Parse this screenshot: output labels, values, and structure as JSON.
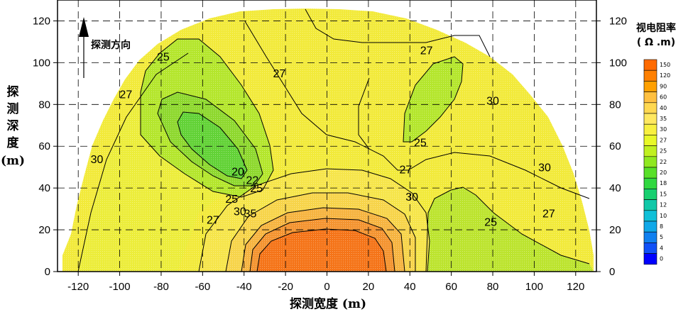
{
  "chart_data": {
    "type": "heatmap",
    "title": "",
    "xlabel": "探测宽度 (m)",
    "ylabel_chars": [
      "探",
      "测",
      "深",
      "度",
      "(m)"
    ],
    "annotation_direction": "探测方向",
    "xlim": [
      -130,
      130
    ],
    "ylim": [
      0,
      130
    ],
    "x_ticks": [
      "-120",
      "-100",
      "-80",
      "-60",
      "-40",
      "-20",
      "0",
      "20",
      "40",
      "60",
      "80",
      "100",
      "120"
    ],
    "y_ticks_left": [
      "0",
      "20",
      "40",
      "60",
      "80",
      "100",
      "120"
    ],
    "y_ticks_right": [
      "0",
      "20",
      "40",
      "60",
      "80",
      "100",
      "120"
    ],
    "grid": true,
    "legend_title_lines": [
      "视电阻率",
      "( Ω .m)"
    ],
    "legend_position": "right",
    "legend": [
      {
        "label": "150",
        "color": "#ff6a00"
      },
      {
        "label": "120",
        "color": "#ff8000"
      },
      {
        "label": "90",
        "color": "#ffa000"
      },
      {
        "label": "60",
        "color": "#ffc040"
      },
      {
        "label": "40",
        "color": "#ffd850"
      },
      {
        "label": "35",
        "color": "#ffe860"
      },
      {
        "label": "30",
        "color": "#f8f040"
      },
      {
        "label": "27",
        "color": "#e8f828"
      },
      {
        "label": "25",
        "color": "#c0f020"
      },
      {
        "label": "22",
        "color": "#90e820"
      },
      {
        "label": "20",
        "color": "#58e028"
      },
      {
        "label": "18",
        "color": "#30d840"
      },
      {
        "label": "15",
        "color": "#18d070"
      },
      {
        "label": "12",
        "color": "#10c8a8"
      },
      {
        "label": "10",
        "color": "#10c0d8"
      },
      {
        "label": "8",
        "color": "#10a8e8"
      },
      {
        "label": "5",
        "color": "#1080f0"
      },
      {
        "label": "4",
        "color": "#1050f8"
      },
      {
        "label": "0",
        "color": "#0000ff"
      }
    ],
    "contour_labels": [
      {
        "text": "25",
        "x": -79,
        "y": 103
      },
      {
        "text": "27",
        "x": -97,
        "y": 85
      },
      {
        "text": "27",
        "x": -23,
        "y": 95
      },
      {
        "text": "27",
        "x": 48,
        "y": 106
      },
      {
        "text": "30",
        "x": -111,
        "y": 54
      },
      {
        "text": "20",
        "x": -43,
        "y": 48
      },
      {
        "text": "22",
        "x": -36,
        "y": 44
      },
      {
        "text": "25",
        "x": -34,
        "y": 40
      },
      {
        "text": "25",
        "x": -46,
        "y": 35
      },
      {
        "text": "27",
        "x": -55,
        "y": 25
      },
      {
        "text": "30",
        "x": -42,
        "y": 29
      },
      {
        "text": "35",
        "x": -37,
        "y": 28
      },
      {
        "text": "25",
        "x": 45,
        "y": 62
      },
      {
        "text": "27",
        "x": 38,
        "y": 49
      },
      {
        "text": "30",
        "x": 80,
        "y": 82
      },
      {
        "text": "30",
        "x": 41,
        "y": 36
      },
      {
        "text": "30",
        "x": 105,
        "y": 50
      },
      {
        "text": "27",
        "x": 107,
        "y": 28
      },
      {
        "text": "25",
        "x": 79,
        "y": 24
      }
    ]
  }
}
